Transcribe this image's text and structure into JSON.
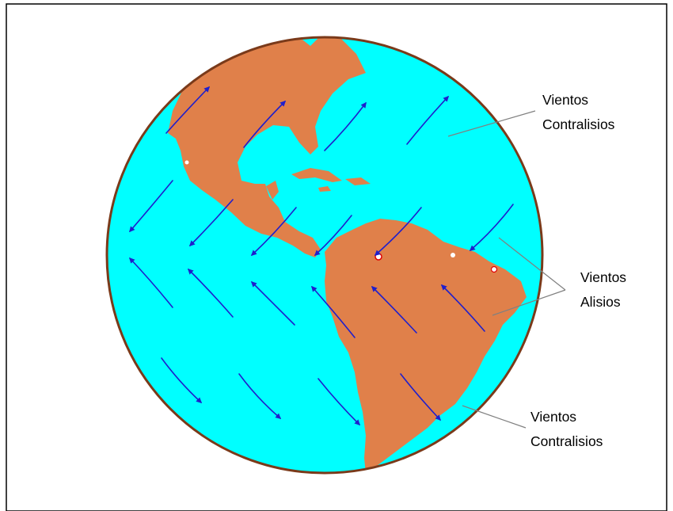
{
  "labels": {
    "top": {
      "line1": "Vientos",
      "line2": "Contralisios"
    },
    "middle": {
      "line1": "Vientos",
      "line2": "Alisios"
    },
    "bottom": {
      "line1": "Vientos",
      "line2": "Contralisios"
    }
  },
  "colors": {
    "ocean": "#00FFFF",
    "land": "#E0804A",
    "globe_border": "#7A3A1A",
    "arrow": "#1F1FCC",
    "leader_line": "#808080",
    "frame_border": "#000000"
  }
}
